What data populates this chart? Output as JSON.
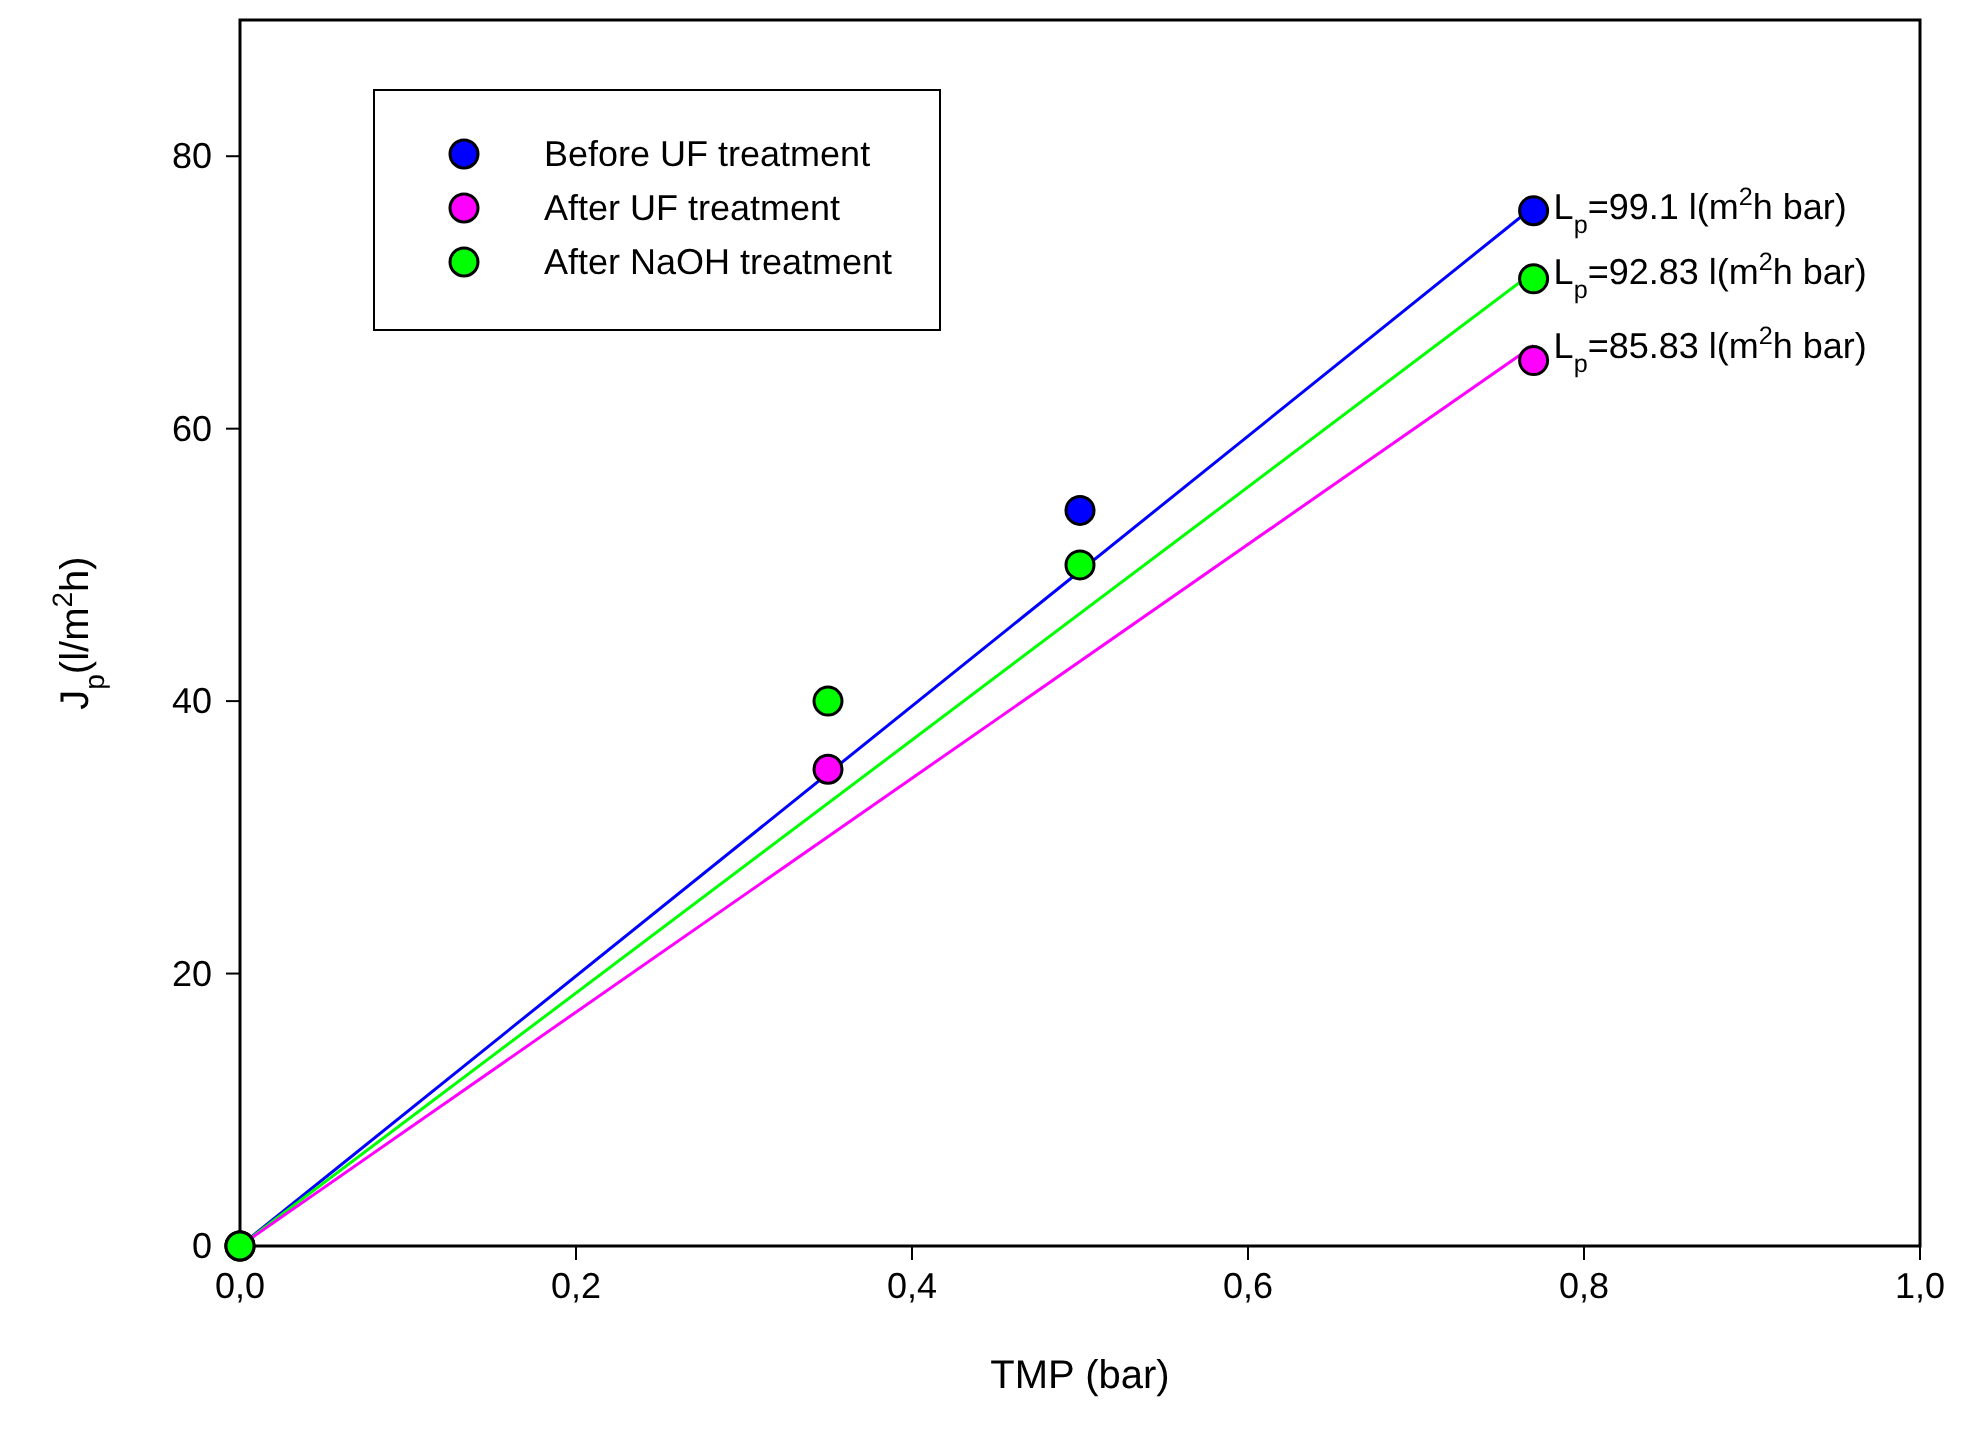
{
  "chart_data": {
    "type": "scatter",
    "xlabel": "TMP (bar)",
    "ylabel": "J$_{p}$(l/m$^{2}$h)",
    "xlim": [
      0,
      1
    ],
    "xticks": [
      {
        "value": 0,
        "label": "0,0"
      },
      {
        "value": 0.2,
        "label": "0,2"
      },
      {
        "value": 0.4,
        "label": "0,4"
      },
      {
        "value": 0.6,
        "label": "0,6"
      },
      {
        "value": 0.8,
        "label": "0,8"
      },
      {
        "value": 1,
        "label": "1,0"
      }
    ],
    "ylim": [
      0,
      90
    ],
    "yticks": [
      0,
      20,
      40,
      60,
      80
    ],
    "grid": false,
    "legend": "top left",
    "marker": "circle",
    "series": [
      {
        "type": "line",
        "color": "#0000ff",
        "x": [
          0,
          0.77
        ],
        "values": [
          0,
          76.3
        ],
        "marker": "none"
      },
      {
        "type": "line",
        "color": "#00ff00",
        "x": [
          0,
          0.77
        ],
        "values": [
          0,
          71.5
        ],
        "marker": "none"
      },
      {
        "type": "line",
        "color": "#ff00ff",
        "x": [
          0,
          0.77
        ],
        "values": [
          0,
          66.1
        ],
        "marker": "none"
      },
      {
        "name": "Before UF treatment",
        "color": "#0000ff",
        "x": [
          0,
          0.35,
          0.5,
          0.77
        ],
        "values": [
          0,
          null,
          54,
          76
        ]
      },
      {
        "name": "After UF treatment",
        "color": "#ff00ff",
        "x": [
          0,
          0.35,
          0.5,
          0.77
        ],
        "values": [
          0,
          35,
          null,
          65
        ]
      },
      {
        "name": "After NaOH treatment",
        "color": "#00ff00",
        "x": [
          0,
          0.35,
          0.5,
          0.77
        ],
        "values": [
          0,
          40,
          50,
          71
        ]
      }
    ],
    "annotations": [
      "L$_{p}$=99.1 l(m$^{2}$h bar)",
      "L$_{p}$=92.83 l(m$^{2}$h bar)",
      "L$_{p}$=85.83 l(m$^{2}$h bar)"
    ]
  }
}
